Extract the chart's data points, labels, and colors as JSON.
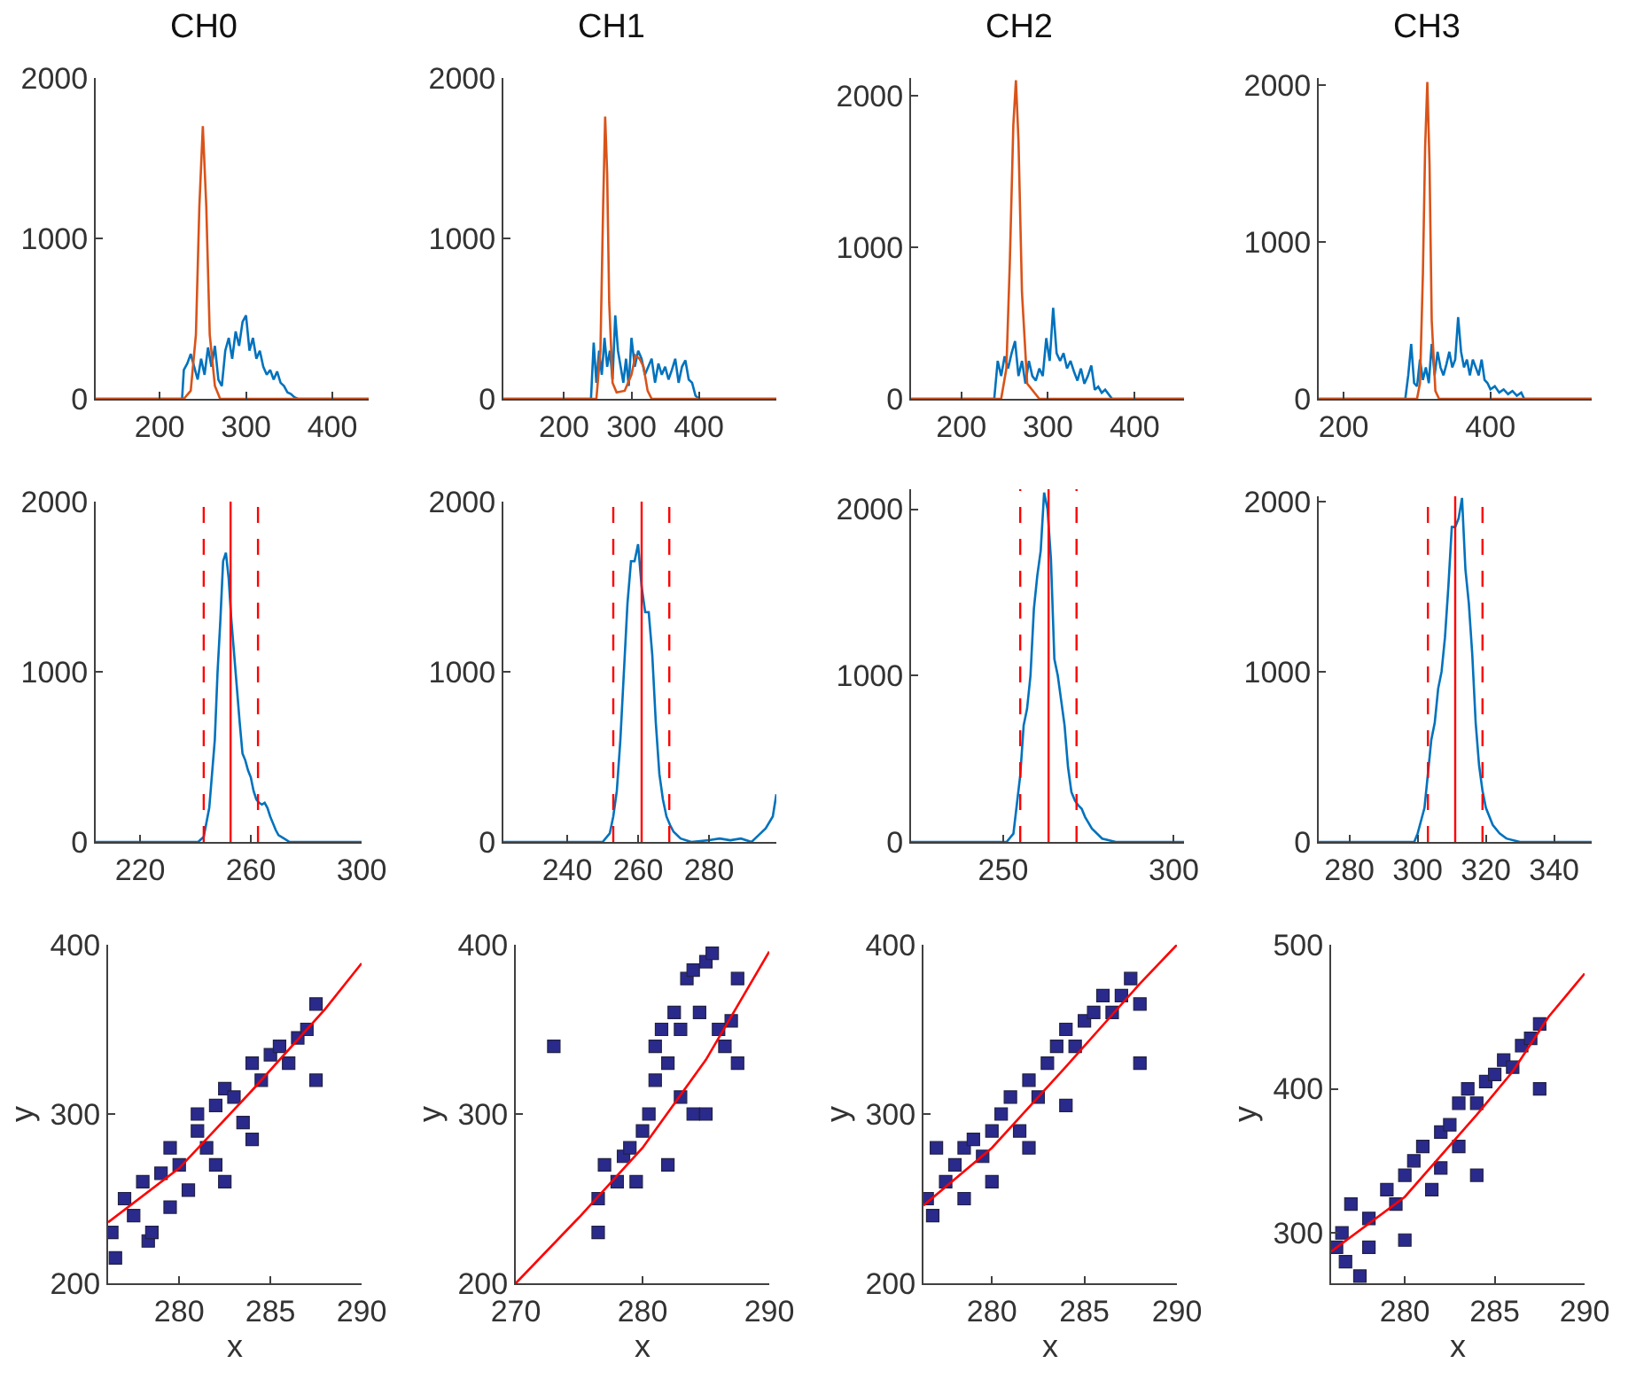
{
  "chart_data": [
    {
      "type": "line",
      "title": "CH0",
      "xlim": [
        126,
        442
      ],
      "xticks": [
        200,
        300,
        400
      ],
      "ylim": [
        0,
        2000
      ],
      "yticks": [
        0,
        1000,
        2000
      ],
      "grid": false,
      "series": [
        {
          "color": "#0072bd",
          "x": [
            126,
            226,
            228,
            232,
            236,
            240,
            244,
            248,
            252,
            256,
            260,
            264,
            268,
            272,
            276,
            280,
            284,
            288,
            292,
            296,
            300,
            304,
            308,
            312,
            316,
            320,
            324,
            328,
            332,
            336,
            340,
            344,
            348,
            352,
            356,
            360,
            442
          ],
          "values": [
            0,
            0,
            180,
            220,
            280,
            200,
            120,
            250,
            150,
            320,
            200,
            330,
            120,
            80,
            300,
            380,
            250,
            420,
            330,
            480,
            520,
            300,
            380,
            250,
            300,
            200,
            150,
            180,
            120,
            170,
            100,
            80,
            40,
            30,
            10,
            0,
            0
          ]
        },
        {
          "color": "#d95319",
          "x": [
            126,
            228,
            236,
            242,
            246,
            250,
            254,
            258,
            264,
            270,
            442
          ],
          "values": [
            0,
            0,
            50,
            400,
            1200,
            1700,
            1200,
            400,
            80,
            0,
            0
          ]
        }
      ]
    },
    {
      "type": "line",
      "title": "CH1",
      "xlim": [
        110,
        515
      ],
      "xticks": [
        200,
        300,
        400
      ],
      "ylim": [
        0,
        2000
      ],
      "yticks": [
        0,
        1000,
        2000
      ],
      "grid": false,
      "series": [
        {
          "color": "#0072bd",
          "x": [
            110,
            240,
            244,
            248,
            252,
            256,
            260,
            264,
            268,
            272,
            276,
            280,
            284,
            288,
            292,
            296,
            300,
            305,
            310,
            315,
            320,
            325,
            330,
            335,
            340,
            345,
            350,
            355,
            360,
            365,
            370,
            375,
            380,
            385,
            390,
            395,
            400,
            515
          ],
          "values": [
            0,
            0,
            350,
            100,
            300,
            150,
            380,
            200,
            300,
            120,
            520,
            300,
            200,
            100,
            250,
            80,
            380,
            200,
            300,
            250,
            150,
            200,
            250,
            100,
            220,
            150,
            200,
            120,
            180,
            250,
            100,
            200,
            240,
            120,
            100,
            20,
            0,
            0
          ]
        },
        {
          "color": "#d95319",
          "x": [
            110,
            248,
            254,
            258,
            261,
            264,
            267,
            272,
            278,
            290,
            300,
            306,
            312,
            318,
            324,
            330,
            515
          ],
          "values": [
            0,
            0,
            300,
            1200,
            1760,
            1400,
            600,
            100,
            40,
            50,
            150,
            270,
            250,
            200,
            50,
            0,
            0
          ]
        }
      ]
    },
    {
      "type": "line",
      "title": "CH2",
      "xlim": [
        142,
        457
      ],
      "xticks": [
        200,
        300,
        400
      ],
      "ylim": [
        0,
        2115
      ],
      "yticks": [
        0,
        1000,
        2000
      ],
      "grid": false,
      "series": [
        {
          "color": "#0072bd",
          "x": [
            142,
            238,
            242,
            246,
            250,
            254,
            258,
            262,
            266,
            270,
            274,
            278,
            282,
            286,
            290,
            294,
            298,
            302,
            306,
            310,
            314,
            318,
            322,
            326,
            330,
            334,
            338,
            342,
            346,
            350,
            354,
            358,
            362,
            366,
            370,
            374,
            457
          ],
          "values": [
            0,
            0,
            250,
            150,
            280,
            200,
            300,
            380,
            150,
            250,
            100,
            250,
            150,
            120,
            200,
            150,
            400,
            250,
            600,
            300,
            250,
            300,
            200,
            250,
            180,
            120,
            200,
            100,
            150,
            220,
            60,
            80,
            40,
            60,
            30,
            0,
            0
          ]
        },
        {
          "color": "#d95319",
          "x": [
            142,
            246,
            252,
            256,
            260,
            263,
            266,
            270,
            276,
            290,
            457
          ],
          "values": [
            0,
            0,
            200,
            900,
            1800,
            2100,
            1700,
            700,
            100,
            0,
            0
          ]
        }
      ]
    },
    {
      "type": "line",
      "title": "CH3",
      "xlim": [
        166,
        538
      ],
      "xticks": [
        200,
        400
      ],
      "ylim": [
        0,
        2045
      ],
      "yticks": [
        0,
        1000,
        2000
      ],
      "grid": false,
      "series": [
        {
          "color": "#0072bd",
          "x": [
            166,
            284,
            288,
            292,
            296,
            300,
            304,
            308,
            312,
            316,
            320,
            324,
            328,
            332,
            336,
            340,
            344,
            348,
            352,
            356,
            360,
            364,
            368,
            372,
            376,
            380,
            384,
            388,
            392,
            396,
            400,
            406,
            412,
            418,
            424,
            430,
            436,
            442,
            446,
            538
          ],
          "values": [
            0,
            0,
            150,
            350,
            100,
            80,
            250,
            120,
            200,
            100,
            350,
            150,
            300,
            200,
            150,
            220,
            300,
            200,
            250,
            520,
            300,
            200,
            250,
            150,
            250,
            200,
            150,
            250,
            120,
            100,
            60,
            80,
            40,
            60,
            30,
            50,
            20,
            40,
            0,
            0
          ]
        },
        {
          "color": "#d95319",
          "x": [
            166,
            300,
            304,
            308,
            311,
            314,
            317,
            320,
            325,
            330,
            538
          ],
          "values": [
            0,
            0,
            100,
            800,
            1600,
            2020,
            1500,
            500,
            50,
            0,
            0
          ]
        }
      ]
    },
    {
      "type": "line",
      "xlim": [
        204,
        300
      ],
      "xticks": [
        220,
        260,
        300
      ],
      "ylim": [
        0,
        2000
      ],
      "yticks": [
        0,
        1000,
        2000
      ],
      "grid": false,
      "series": [
        {
          "color": "#0072bd",
          "x": [
            204,
            241,
            243,
            245,
            247,
            248,
            249,
            250,
            251,
            252,
            253,
            254,
            255,
            256,
            257,
            258,
            259,
            260,
            261,
            262,
            263,
            264,
            265,
            266,
            267,
            268,
            269,
            270,
            272,
            274,
            300
          ],
          "values": [
            0,
            0,
            30,
            200,
            600,
            1000,
            1300,
            1650,
            1700,
            1550,
            1300,
            1100,
            900,
            700,
            520,
            480,
            420,
            380,
            300,
            250,
            230,
            220,
            230,
            200,
            150,
            110,
            70,
            40,
            20,
            0,
            0
          ]
        }
      ],
      "ref_lines": [
        {
          "axis": "x",
          "value": 243,
          "color": "#ff0000",
          "line_style": "dashed"
        },
        {
          "axis": "x",
          "value": 252.7,
          "color": "#ff0000",
          "line_style": "solid"
        },
        {
          "axis": "x",
          "value": 262.6,
          "color": "#ff0000",
          "line_style": "dashed"
        }
      ]
    },
    {
      "type": "line",
      "xlim": [
        222,
        299
      ],
      "xticks": [
        240,
        260,
        280
      ],
      "ylim": [
        0,
        2000
      ],
      "yticks": [
        0,
        1000,
        2000
      ],
      "grid": false,
      "series": [
        {
          "color": "#0072bd",
          "x": [
            222,
            250,
            252,
            253,
            254,
            255,
            256,
            257,
            258,
            259,
            260,
            261,
            262,
            263,
            264,
            265,
            266,
            267,
            268,
            269,
            270,
            272,
            275,
            280,
            283,
            286,
            289,
            292,
            294,
            296,
            298,
            299
          ],
          "values": [
            0,
            0,
            50,
            150,
            300,
            600,
            1000,
            1400,
            1650,
            1650,
            1750,
            1500,
            1350,
            1350,
            1100,
            700,
            400,
            250,
            150,
            100,
            60,
            20,
            0,
            10,
            20,
            10,
            20,
            0,
            40,
            80,
            150,
            280
          ]
        }
      ],
      "ref_lines": [
        {
          "axis": "x",
          "value": 253,
          "color": "#ff0000",
          "line_style": "dashed"
        },
        {
          "axis": "x",
          "value": 261,
          "color": "#ff0000",
          "line_style": "solid"
        },
        {
          "axis": "x",
          "value": 268.8,
          "color": "#ff0000",
          "line_style": "dashed"
        }
      ]
    },
    {
      "type": "line",
      "xlim": [
        223,
        303
      ],
      "xticks": [
        250,
        300
      ],
      "ylim": [
        0,
        2120
      ],
      "yticks": [
        0,
        1000,
        2000
      ],
      "grid": false,
      "series": [
        {
          "color": "#0072bd",
          "x": [
            223,
            251,
            253,
            255,
            256,
            257,
            258,
            259,
            260,
            261,
            262,
            263,
            264,
            265,
            266,
            267,
            268,
            269,
            270,
            271,
            272,
            273,
            274,
            276,
            279,
            283,
            303
          ],
          "values": [
            0,
            0,
            50,
            400,
            700,
            800,
            1000,
            1400,
            1600,
            1750,
            2100,
            2000,
            1700,
            1100,
            1000,
            850,
            700,
            450,
            300,
            250,
            220,
            200,
            150,
            80,
            20,
            0,
            0
          ]
        }
      ],
      "ref_lines": [
        {
          "axis": "x",
          "value": 255,
          "color": "#ff0000",
          "line_style": "dashed"
        },
        {
          "axis": "x",
          "value": 263.3,
          "color": "#ff0000",
          "line_style": "solid"
        },
        {
          "axis": "x",
          "value": 271.5,
          "color": "#ff0000",
          "line_style": "dashed"
        }
      ]
    },
    {
      "type": "line",
      "xlim": [
        271,
        351
      ],
      "xticks": [
        280,
        300,
        320,
        340
      ],
      "ylim": [
        0,
        2030
      ],
      "yticks": [
        0,
        1000,
        2000
      ],
      "grid": false,
      "series": [
        {
          "color": "#0072bd",
          "x": [
            271,
            299,
            300,
            302,
            303,
            304,
            305,
            306,
            307,
            308,
            309,
            310,
            311,
            312,
            313,
            314,
            315,
            316,
            317,
            318,
            319,
            320,
            322,
            324,
            326,
            330,
            351
          ],
          "values": [
            0,
            0,
            50,
            200,
            400,
            600,
            700,
            900,
            1000,
            1200,
            1500,
            1850,
            1850,
            1900,
            2020,
            1600,
            1400,
            1100,
            700,
            450,
            300,
            200,
            100,
            50,
            20,
            0,
            0
          ]
        }
      ],
      "ref_lines": [
        {
          "axis": "x",
          "value": 303,
          "color": "#ff0000",
          "line_style": "dashed"
        },
        {
          "axis": "x",
          "value": 311,
          "color": "#ff0000",
          "line_style": "solid"
        },
        {
          "axis": "x",
          "value": 319,
          "color": "#ff0000",
          "line_style": "dashed"
        }
      ]
    },
    {
      "type": "scatter",
      "xlabel": "x",
      "ylabel": "y",
      "xlim": [
        276.1,
        290
      ],
      "xticks": [
        280,
        285,
        290
      ],
      "ylim": [
        200,
        400
      ],
      "yticks": [
        200,
        300,
        400
      ],
      "grid": false,
      "series": [
        {
          "color": "#2a2a8c",
          "marker": "square",
          "x": [
            276.3,
            276.5,
            277,
            277.5,
            278,
            278.3,
            279,
            279.5,
            279.5,
            280,
            280.5,
            281,
            281,
            281.5,
            282,
            282,
            282.5,
            282.5,
            283,
            283.5,
            284,
            284,
            284.5,
            285,
            285.5,
            286,
            286.5,
            287,
            287.5,
            287.5,
            278.5
          ],
          "values": [
            230,
            215,
            250,
            240,
            260,
            225,
            265,
            280,
            245,
            270,
            255,
            290,
            300,
            280,
            305,
            270,
            315,
            260,
            310,
            295,
            330,
            285,
            320,
            335,
            340,
            330,
            345,
            350,
            365,
            320,
            230
          ]
        },
        {
          "type": "line",
          "color": "#ff0000",
          "x": [
            276.1,
            280,
            284,
            288,
            290
          ],
          "values": [
            236,
            268,
            314,
            362,
            389
          ]
        }
      ]
    },
    {
      "type": "scatter",
      "xlabel": "x",
      "ylabel": "y",
      "xlim": [
        270,
        290
      ],
      "xticks": [
        270,
        280,
        290
      ],
      "ylim": [
        200,
        400
      ],
      "yticks": [
        200,
        300,
        400
      ],
      "grid": false,
      "series": [
        {
          "color": "#2a2a8c",
          "marker": "square",
          "x": [
            273,
            276.5,
            276.5,
            277,
            278,
            278.5,
            279,
            279.5,
            280,
            280.5,
            281,
            281,
            281.5,
            282,
            282,
            282.5,
            283,
            283,
            283.5,
            284,
            284,
            284.5,
            285,
            285.5,
            286,
            286.5,
            287,
            287.5,
            287.5,
            285
          ],
          "values": [
            340,
            250,
            230,
            270,
            260,
            275,
            280,
            260,
            290,
            300,
            320,
            340,
            350,
            330,
            270,
            360,
            350,
            310,
            380,
            385,
            300,
            360,
            390,
            395,
            350,
            340,
            355,
            330,
            380,
            300
          ]
        },
        {
          "type": "line",
          "color": "#ff0000",
          "x": [
            270,
            275,
            280,
            285,
            290
          ],
          "values": [
            200,
            239,
            280,
            332,
            396
          ]
        }
      ]
    },
    {
      "type": "scatter",
      "xlabel": "x",
      "ylabel": "y",
      "xlim": [
        276.3,
        290
      ],
      "xticks": [
        280,
        285,
        290
      ],
      "ylim": [
        200,
        400
      ],
      "yticks": [
        200,
        300,
        400
      ],
      "grid": false,
      "series": [
        {
          "color": "#2a2a8c",
          "marker": "square",
          "x": [
            276.5,
            276.8,
            277,
            277.5,
            278,
            278.5,
            278.5,
            279,
            279.5,
            280,
            280,
            280.5,
            281,
            281.5,
            282,
            282,
            282.5,
            283,
            283.5,
            284,
            284,
            284.5,
            285,
            285.5,
            286,
            286.5,
            287,
            287.5,
            288,
            288
          ],
          "values": [
            250,
            240,
            280,
            260,
            270,
            280,
            250,
            285,
            275,
            290,
            260,
            300,
            310,
            290,
            320,
            280,
            310,
            330,
            340,
            350,
            305,
            340,
            355,
            360,
            370,
            360,
            370,
            380,
            365,
            330
          ]
        },
        {
          "type": "line",
          "color": "#ff0000",
          "x": [
            276.3,
            280,
            284,
            288,
            290
          ],
          "values": [
            246,
            280,
            328,
            377,
            400
          ]
        }
      ]
    },
    {
      "type": "scatter",
      "xlabel": "x",
      "ylabel": "y",
      "xlim": [
        275.9,
        290
      ],
      "xticks": [
        280,
        285,
        290
      ],
      "ylim": [
        265,
        500
      ],
      "yticks": [
        300,
        400,
        500
      ],
      "grid": false,
      "series": [
        {
          "color": "#2a2a8c",
          "marker": "square",
          "x": [
            276.2,
            276.5,
            276.7,
            277,
            277.5,
            278,
            278,
            279,
            279.5,
            280,
            280,
            280.5,
            281,
            281.5,
            282,
            282,
            282.5,
            283,
            283,
            283.5,
            284,
            284,
            284.5,
            285,
            285.5,
            286,
            286.5,
            287,
            287.5,
            287.5
          ],
          "values": [
            290,
            300,
            280,
            320,
            270,
            310,
            290,
            330,
            320,
            340,
            295,
            350,
            360,
            330,
            370,
            345,
            375,
            390,
            360,
            400,
            390,
            340,
            405,
            410,
            420,
            415,
            430,
            435,
            445,
            400
          ]
        },
        {
          "type": "line",
          "color": "#ff0000",
          "x": [
            275.9,
            280,
            284,
            286,
            288,
            290
          ],
          "values": [
            287,
            325,
            382,
            412,
            450,
            480
          ]
        }
      ]
    }
  ]
}
